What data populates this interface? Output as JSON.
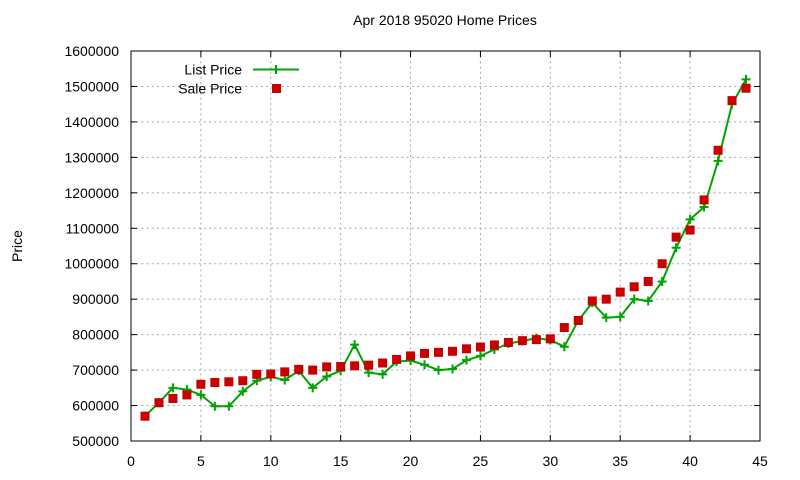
{
  "title": "Apr 2018 95020 Home Prices",
  "ylabel": "Price",
  "legend": [
    {
      "label": "List Price",
      "style": "line-plus",
      "color": "#00a400"
    },
    {
      "label": "Sale Price",
      "style": "square",
      "color": "#c80000"
    }
  ],
  "colors": {
    "list_price": "#00a400",
    "sale_price": "#c80000",
    "grid": "#a8a8a8",
    "axis": "#000000",
    "background": "#ffffff"
  },
  "chart_data": {
    "type": "line",
    "title": "Apr 2018 95020 Home Prices",
    "xlabel": "",
    "ylabel": "Price",
    "xlim": [
      0,
      45
    ],
    "ylim": [
      500000,
      1600000
    ],
    "x_ticks": [
      0,
      5,
      10,
      15,
      20,
      25,
      30,
      35,
      40,
      45
    ],
    "y_ticks": [
      500000,
      600000,
      700000,
      800000,
      900000,
      1000000,
      1100000,
      1200000,
      1300000,
      1400000,
      1500000,
      1600000
    ],
    "grid": true,
    "legend_position": "top-left-inside",
    "x": [
      1,
      2,
      3,
      4,
      5,
      6,
      7,
      8,
      9,
      10,
      11,
      12,
      13,
      14,
      15,
      16,
      17,
      18,
      19,
      20,
      21,
      22,
      23,
      24,
      25,
      26,
      27,
      28,
      29,
      30,
      31,
      32,
      33,
      34,
      35,
      36,
      37,
      38,
      39,
      40,
      41,
      42,
      43,
      44
    ],
    "series": [
      {
        "name": "List Price",
        "style": "line-plus",
        "color": "#00a400",
        "values": [
          570000,
          608000,
          650000,
          645000,
          630000,
          598000,
          598000,
          640000,
          670000,
          681000,
          672000,
          698000,
          650000,
          682000,
          698000,
          772000,
          693000,
          688000,
          724000,
          727000,
          715000,
          700000,
          703000,
          728000,
          740000,
          758000,
          775000,
          782000,
          790000,
          785000,
          766000,
          840000,
          890000,
          848000,
          850000,
          900000,
          895000,
          950000,
          1045000,
          1125000,
          1160000,
          1290000,
          1450000,
          1520000
        ]
      },
      {
        "name": "Sale Price",
        "style": "square",
        "color": "#c80000",
        "values": [
          570000,
          608000,
          620000,
          630000,
          660000,
          665000,
          667000,
          670000,
          688000,
          689000,
          695000,
          702000,
          700000,
          709000,
          710000,
          712000,
          714000,
          720000,
          730000,
          740000,
          747000,
          750000,
          753000,
          760000,
          765000,
          771000,
          778000,
          783000,
          786000,
          788000,
          820000,
          840000,
          895000,
          900000,
          920000,
          935000,
          950000,
          1000000,
          1075000,
          1095000,
          1180000,
          1320000,
          1460000,
          1495000
        ]
      }
    ]
  }
}
